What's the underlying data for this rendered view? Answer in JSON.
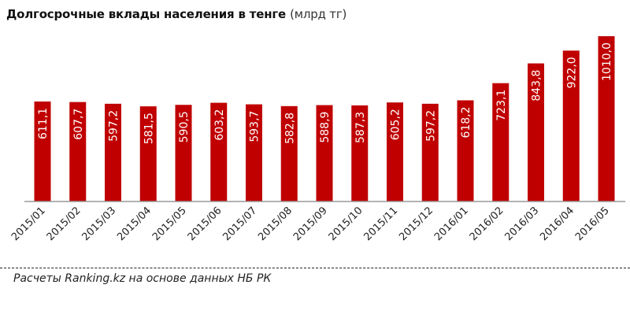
{
  "chart_data": {
    "type": "bar",
    "title": "Долгосрочные вклады населения в тенге",
    "unit": "(млрд тг)",
    "categories": [
      "2015/01",
      "2015/02",
      "2015/03",
      "2015/04",
      "2015/05",
      "2015/06",
      "2015/07",
      "2015/08",
      "2015/09",
      "2015/10",
      "2015/11",
      "2015/12",
      "2016/01",
      "2016/02",
      "2016/03",
      "2016/04",
      "2016/05"
    ],
    "values": [
      611.1,
      607.7,
      597.2,
      581.5,
      590.5,
      603.2,
      593.7,
      582.8,
      588.9,
      587.3,
      605.2,
      597.2,
      618.2,
      723.1,
      843.8,
      922.0,
      1010.0
    ],
    "value_labels": [
      "611,1",
      "607,7",
      "597,2",
      "581,5",
      "590,5",
      "603,2",
      "593,7",
      "582,8",
      "588,9",
      "587,3",
      "605,2",
      "597,2",
      "618,2",
      "723,1",
      "843,8",
      "922,0",
      "1010,0"
    ],
    "xlabel": "",
    "ylabel": "",
    "ylim": [
      0,
      1010
    ],
    "grid": false,
    "legend": "none",
    "bar_color": "#c00000"
  },
  "footer": {
    "source": "Расчеты Ranking.kz на основе данных НБ РК"
  }
}
